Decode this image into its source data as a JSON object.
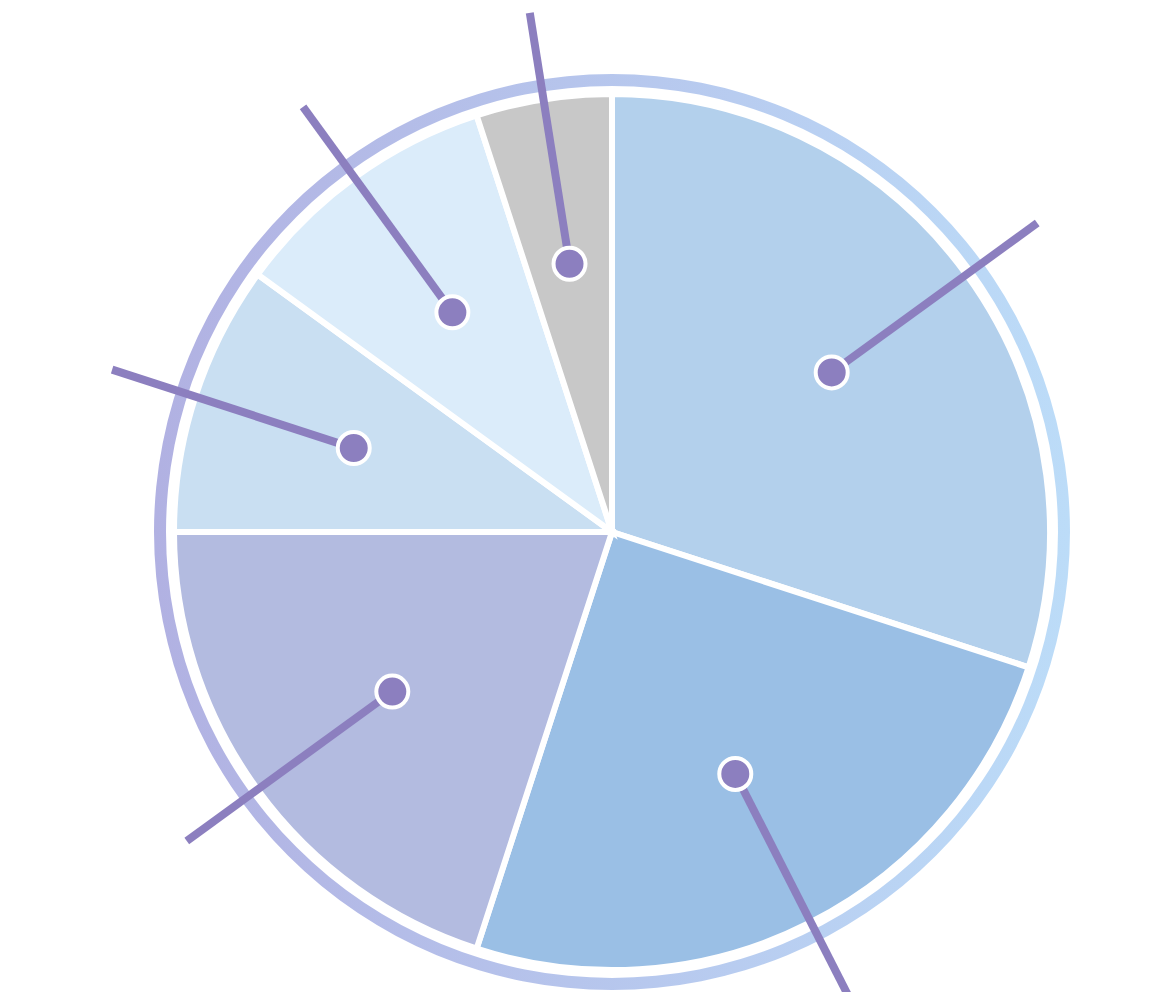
{
  "chart_data": {
    "type": "pie",
    "categories": [
      null,
      null,
      null,
      null,
      null,
      null
    ],
    "values": [
      30,
      25,
      20,
      10,
      10,
      5
    ],
    "colors": [
      "#b3d0ec",
      "#9abfe5",
      "#b3bbe0",
      "#c9dff2",
      "#dbecfa",
      "#c8c8c8"
    ]
  }
}
